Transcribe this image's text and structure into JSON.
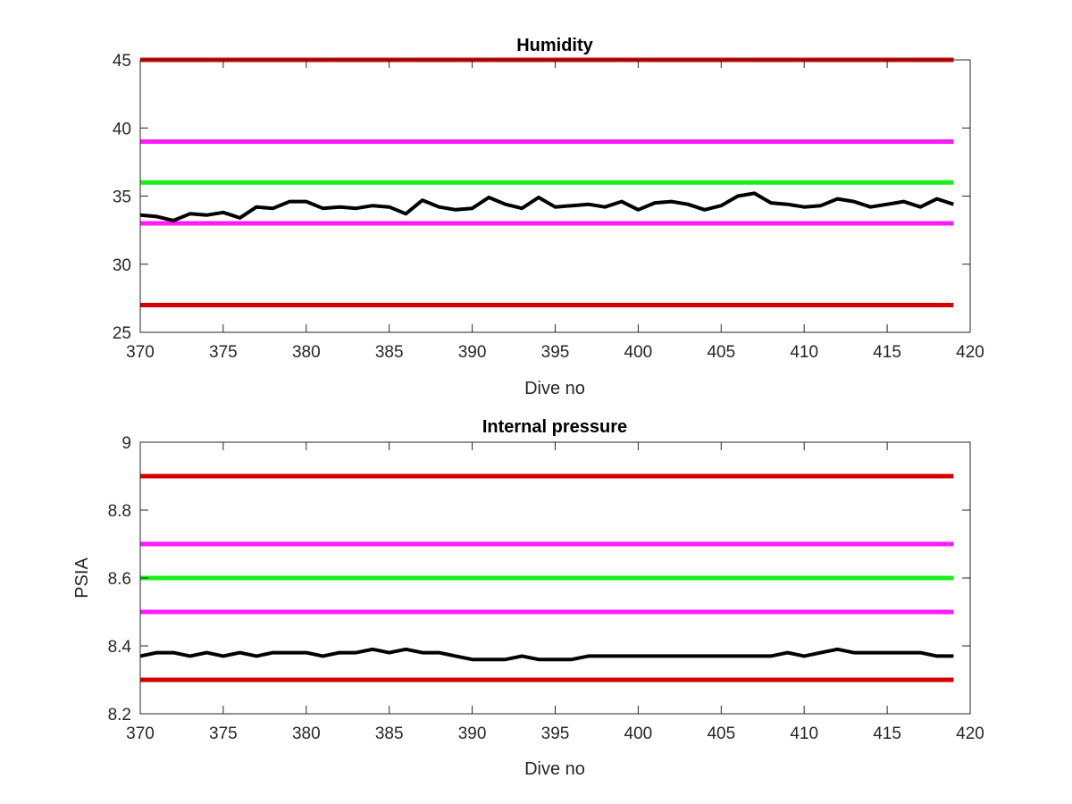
{
  "chart_data": [
    {
      "type": "line",
      "title": "Humidity",
      "xlabel": "Dive no",
      "ylabel": "",
      "xlim": [
        370,
        420
      ],
      "ylim": [
        25,
        45
      ],
      "xticks": [
        370,
        375,
        380,
        385,
        390,
        395,
        400,
        405,
        410,
        415,
        420
      ],
      "yticks": [
        25,
        30,
        35,
        40,
        45
      ],
      "grid": false,
      "thresholds": [
        {
          "color": "#d40000",
          "value": 45
        },
        {
          "color": "#ff1aff",
          "value": 39
        },
        {
          "color": "#1aee1a",
          "value": 36
        },
        {
          "color": "#ff1aff",
          "value": 33
        },
        {
          "color": "#d40000",
          "value": 27
        }
      ],
      "threshold_xrange": [
        370,
        419
      ],
      "series": [
        {
          "color": "#000000",
          "x": [
            370,
            371,
            372,
            373,
            374,
            375,
            376,
            377,
            378,
            379,
            380,
            381,
            382,
            383,
            384,
            385,
            386,
            387,
            388,
            389,
            390,
            391,
            392,
            393,
            394,
            395,
            396,
            397,
            398,
            399,
            400,
            401,
            402,
            403,
            404,
            405,
            406,
            407,
            408,
            409,
            410,
            411,
            412,
            413,
            414,
            415,
            416,
            417,
            418,
            419
          ],
          "y": [
            33.6,
            33.5,
            33.2,
            33.7,
            33.6,
            33.8,
            33.4,
            34.2,
            34.1,
            34.6,
            34.6,
            34.1,
            34.2,
            34.1,
            34.3,
            34.2,
            33.7,
            34.7,
            34.2,
            34.0,
            34.1,
            34.9,
            34.4,
            34.1,
            34.9,
            34.2,
            34.3,
            34.4,
            34.2,
            34.6,
            34.0,
            34.5,
            34.6,
            34.4,
            34.0,
            34.3,
            35.0,
            35.2,
            34.5,
            34.4,
            34.2,
            34.3,
            34.8,
            34.6,
            34.2,
            34.4,
            34.6,
            34.2,
            34.8,
            34.4
          ]
        }
      ]
    },
    {
      "type": "line",
      "title": "Internal pressure",
      "xlabel": "Dive no",
      "ylabel": "PSIA",
      "xlim": [
        370,
        420
      ],
      "ylim": [
        8.2,
        9
      ],
      "xticks": [
        370,
        375,
        380,
        385,
        390,
        395,
        400,
        405,
        410,
        415,
        420
      ],
      "yticks": [
        8.2,
        8.4,
        8.6,
        8.8,
        9
      ],
      "grid": false,
      "thresholds": [
        {
          "color": "#d40000",
          "value": 8.9
        },
        {
          "color": "#ff1aff",
          "value": 8.7
        },
        {
          "color": "#1aee1a",
          "value": 8.6
        },
        {
          "color": "#ff1aff",
          "value": 8.5
        },
        {
          "color": "#d40000",
          "value": 8.3
        }
      ],
      "threshold_xrange": [
        370,
        419
      ],
      "series": [
        {
          "color": "#000000",
          "x": [
            370,
            371,
            372,
            373,
            374,
            375,
            376,
            377,
            378,
            379,
            380,
            381,
            382,
            383,
            384,
            385,
            386,
            387,
            388,
            389,
            390,
            391,
            392,
            393,
            394,
            395,
            396,
            397,
            398,
            399,
            400,
            401,
            402,
            403,
            404,
            405,
            406,
            407,
            408,
            409,
            410,
            411,
            412,
            413,
            414,
            415,
            416,
            417,
            418,
            419
          ],
          "y": [
            8.37,
            8.38,
            8.38,
            8.37,
            8.38,
            8.37,
            8.38,
            8.37,
            8.38,
            8.38,
            8.38,
            8.37,
            8.38,
            8.38,
            8.39,
            8.38,
            8.39,
            8.38,
            8.38,
            8.37,
            8.36,
            8.36,
            8.36,
            8.37,
            8.36,
            8.36,
            8.36,
            8.37,
            8.37,
            8.37,
            8.37,
            8.37,
            8.37,
            8.37,
            8.37,
            8.37,
            8.37,
            8.37,
            8.37,
            8.38,
            8.37,
            8.38,
            8.39,
            8.38,
            8.38,
            8.38,
            8.38,
            8.38,
            8.37,
            8.37
          ]
        }
      ]
    }
  ]
}
